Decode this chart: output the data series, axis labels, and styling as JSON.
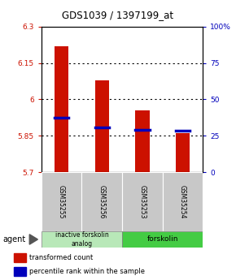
{
  "title": "GDS1039 / 1397199_at",
  "samples": [
    "GSM35255",
    "GSM35256",
    "GSM35253",
    "GSM35254"
  ],
  "bar_tops": [
    6.22,
    6.08,
    5.955,
    5.86
  ],
  "bar_bottom": 5.7,
  "percentile_values": [
    5.925,
    5.885,
    5.875,
    5.872
  ],
  "ylim_left": [
    5.7,
    6.3
  ],
  "ylim_right": [
    0,
    100
  ],
  "yticks_left": [
    5.7,
    5.85,
    6.0,
    6.15,
    6.3
  ],
  "yticks_right": [
    0,
    25,
    50,
    75,
    100
  ],
  "ytick_labels_left": [
    "5.7",
    "5.85",
    "6",
    "6.15",
    "6.3"
  ],
  "ytick_labels_right": [
    "0",
    "25",
    "50",
    "75",
    "100%"
  ],
  "group0_label": "inactive forskolin\nanalog",
  "group0_color": "#b8e8b8",
  "group1_label": "forskolin",
  "group1_color": "#44cc44",
  "bar_color": "#cc1100",
  "percentile_color": "#0000bb",
  "bar_width": 0.35,
  "legend_red_label": "transformed count",
  "legend_blue_label": "percentile rank within the sample",
  "agent_label": "agent",
  "sample_box_color": "#c8c8c8"
}
